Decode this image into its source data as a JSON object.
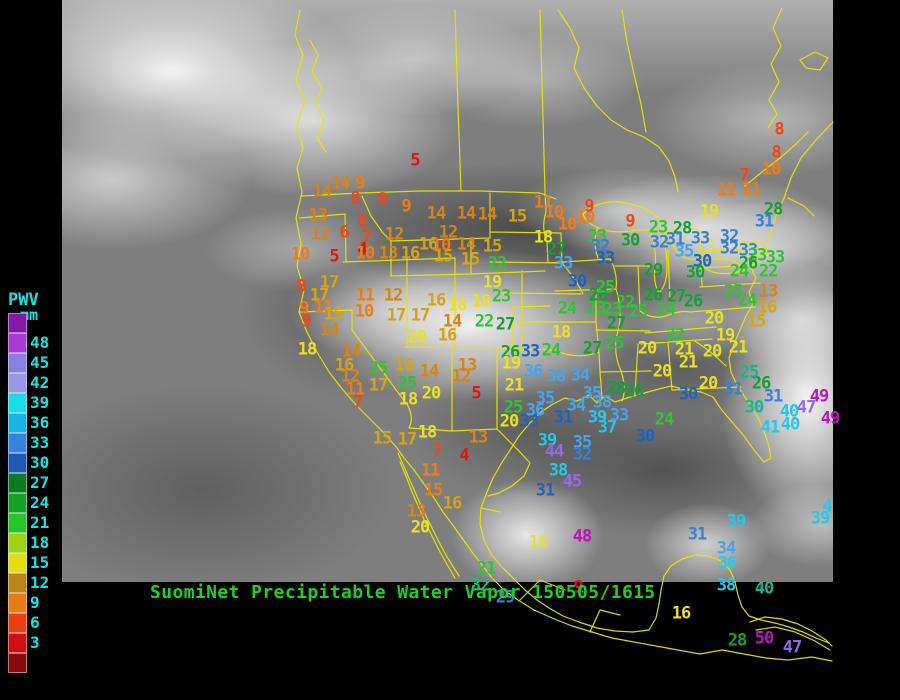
{
  "title": {
    "text": "SuomiNet Precipitable Water Vapor 150505/1615",
    "color": "#20d020"
  },
  "legend": {
    "title": "PWV",
    "units": "mm",
    "text_color": "#10e4e4",
    "swatches": [
      {
        "label": "",
        "color": "#8818a8"
      },
      {
        "label": "48",
        "color": "#a838d8"
      },
      {
        "label": "45",
        "color": "#8880e0"
      },
      {
        "label": "42",
        "color": "#9898e8"
      },
      {
        "label": "39",
        "color": "#18dce8"
      },
      {
        "label": "36",
        "color": "#18b4e8"
      },
      {
        "label": "33",
        "color": "#3484e0"
      },
      {
        "label": "30",
        "color": "#1c5cb4"
      },
      {
        "label": "27",
        "color": "#0c7c24"
      },
      {
        "label": "24",
        "color": "#14a424"
      },
      {
        "label": "21",
        "color": "#28c428"
      },
      {
        "label": "18",
        "color": "#9cd414"
      },
      {
        "label": "15",
        "color": "#e4dc14"
      },
      {
        "label": "12",
        "color": "#bc8414"
      },
      {
        "label": "9",
        "color": "#e87c14"
      },
      {
        "label": "6",
        "color": "#e84010"
      },
      {
        "label": "3",
        "color": "#d01010"
      },
      {
        "label": "",
        "color": "#8c0c0c"
      }
    ]
  },
  "map": {
    "outline_color": "#e8e400"
  },
  "palette": {
    "r": "#e41414",
    "o": "#f04814",
    "O": "#f07c14",
    "a": "#d88414",
    "g": "#d4a414",
    "y": "#e8e024",
    "G": "#30c434",
    "d": "#14a034",
    "t": "#14b890",
    "B": "#1c64c0",
    "b": "#3480dc",
    "l": "#44a4f0",
    "c": "#24c8ec",
    "p": "#9468ec",
    "m": "#bc14bc"
  },
  "stations": [
    [
      5,
      415,
      161,
      "r"
    ],
    [
      14,
      340,
      184,
      "a"
    ],
    [
      9,
      360,
      184,
      "O"
    ],
    [
      14,
      322,
      192,
      "a"
    ],
    [
      8,
      355,
      199,
      "o"
    ],
    [
      8,
      382,
      200,
      "o"
    ],
    [
      9,
      406,
      207,
      "O"
    ],
    [
      13,
      318,
      216,
      "a"
    ],
    [
      12,
      320,
      235,
      "a"
    ],
    [
      6,
      344,
      233,
      "o"
    ],
    [
      8,
      362,
      222,
      "o"
    ],
    [
      7,
      366,
      238,
      "o"
    ],
    [
      4,
      362,
      250,
      "r"
    ],
    [
      12,
      394,
      235,
      "a"
    ],
    [
      14,
      436,
      214,
      "a"
    ],
    [
      14,
      466,
      214,
      "a"
    ],
    [
      14,
      487,
      215,
      "a"
    ],
    [
      15,
      517,
      217,
      "g"
    ],
    [
      10,
      300,
      255,
      "O"
    ],
    [
      5,
      334,
      257,
      "r"
    ],
    [
      10,
      365,
      254,
      "O"
    ],
    [
      13,
      388,
      254,
      "a"
    ],
    [
      16,
      410,
      254,
      "g"
    ],
    [
      15,
      443,
      257,
      "g"
    ],
    [
      15,
      470,
      260,
      "g"
    ],
    [
      12,
      448,
      233,
      "a"
    ],
    [
      16,
      428,
      245,
      "g"
    ],
    [
      10,
      441,
      246,
      "O"
    ],
    [
      14,
      466,
      245,
      "a"
    ],
    [
      15,
      492,
      247,
      "g"
    ],
    [
      11,
      543,
      203,
      "O"
    ],
    [
      10,
      554,
      213,
      "O"
    ],
    [
      10,
      567,
      225,
      "O"
    ],
    [
      10,
      585,
      218,
      "O"
    ],
    [
      9,
      589,
      207,
      "o"
    ],
    [
      9,
      630,
      222,
      "o"
    ],
    [
      18,
      543,
      238,
      "y"
    ],
    [
      8,
      301,
      287,
      "o"
    ],
    [
      17,
      329,
      283,
      "g"
    ],
    [
      17,
      319,
      296,
      "g"
    ],
    [
      9,
      304,
      309,
      "O"
    ],
    [
      11,
      323,
      308,
      "O"
    ],
    [
      9,
      306,
      322,
      "o"
    ],
    [
      15,
      333,
      315,
      "g"
    ],
    [
      14,
      329,
      331,
      "a"
    ],
    [
      11,
      365,
      296,
      "O"
    ],
    [
      12,
      393,
      296,
      "a"
    ],
    [
      10,
      364,
      312,
      "O"
    ],
    [
      17,
      396,
      316,
      "g"
    ],
    [
      17,
      420,
      316,
      "g"
    ],
    [
      16,
      436,
      301,
      "g"
    ],
    [
      18,
      457,
      306,
      "y"
    ],
    [
      18,
      481,
      302,
      "y"
    ],
    [
      23,
      501,
      297,
      "G"
    ],
    [
      14,
      452,
      322,
      "a"
    ],
    [
      22,
      484,
      322,
      "G"
    ],
    [
      27,
      505,
      325,
      "d"
    ],
    [
      16,
      447,
      336,
      "g"
    ],
    [
      20,
      417,
      338,
      "y"
    ],
    [
      19,
      492,
      283,
      "y"
    ],
    [
      22,
      497,
      264,
      "G"
    ],
    [
      18,
      307,
      350,
      "y"
    ],
    [
      14,
      351,
      352,
      "a"
    ],
    [
      16,
      344,
      366,
      "g"
    ],
    [
      12,
      350,
      377,
      "a"
    ],
    [
      11,
      355,
      390,
      "O"
    ],
    [
      7,
      358,
      403,
      "o"
    ],
    [
      25,
      378,
      369,
      "G"
    ],
    [
      17,
      378,
      386,
      "g"
    ],
    [
      25,
      407,
      384,
      "G"
    ],
    [
      16,
      404,
      366,
      "g"
    ],
    [
      14,
      429,
      372,
      "a"
    ],
    [
      20,
      431,
      394,
      "y"
    ],
    [
      18,
      408,
      400,
      "y"
    ],
    [
      24,
      567,
      309,
      "G"
    ],
    [
      18,
      561,
      333,
      "y"
    ],
    [
      27,
      556,
      250,
      "d"
    ],
    [
      33,
      563,
      264,
      "l"
    ],
    [
      23,
      597,
      237,
      "G"
    ],
    [
      32,
      600,
      247,
      "b"
    ],
    [
      33,
      605,
      259,
      "B"
    ],
    [
      30,
      577,
      282,
      "B"
    ],
    [
      26,
      598,
      296,
      "d"
    ],
    [
      25,
      605,
      288,
      "G"
    ],
    [
      23,
      596,
      309,
      "G"
    ],
    [
      23,
      612,
      310,
      "G"
    ],
    [
      22,
      625,
      303,
      "G"
    ],
    [
      25,
      638,
      312,
      "G"
    ],
    [
      27,
      616,
      324,
      "d"
    ],
    [
      25,
      614,
      344,
      "G"
    ],
    [
      26,
      510,
      353,
      "d"
    ],
    [
      33,
      530,
      352,
      "B"
    ],
    [
      24,
      551,
      351,
      "G"
    ],
    [
      27,
      592,
      349,
      "d"
    ],
    [
      13,
      467,
      366,
      "a"
    ],
    [
      12,
      461,
      377,
      "a"
    ],
    [
      5,
      476,
      394,
      "r"
    ],
    [
      19,
      511,
      364,
      "y"
    ],
    [
      36,
      533,
      372,
      "l"
    ],
    [
      38,
      556,
      377,
      "l"
    ],
    [
      34,
      580,
      376,
      "l"
    ],
    [
      21,
      514,
      386,
      "y"
    ],
    [
      25,
      513,
      408,
      "G"
    ],
    [
      20,
      509,
      422,
      "y"
    ],
    [
      33,
      529,
      422,
      "B"
    ],
    [
      31,
      563,
      418,
      "B"
    ],
    [
      39,
      597,
      418,
      "c"
    ],
    [
      37,
      607,
      428,
      "c"
    ],
    [
      33,
      619,
      416,
      "l"
    ],
    [
      30,
      645,
      437,
      "B"
    ],
    [
      35,
      545,
      399,
      "l"
    ],
    [
      36,
      535,
      411,
      "l"
    ],
    [
      34,
      576,
      406,
      "l"
    ],
    [
      38,
      602,
      403,
      "l"
    ],
    [
      35,
      592,
      394,
      "l"
    ],
    [
      28,
      616,
      389,
      "d"
    ],
    [
      26,
      634,
      392,
      "d"
    ],
    [
      13,
      478,
      438,
      "a"
    ],
    [
      39,
      547,
      441,
      "c"
    ],
    [
      35,
      582,
      443,
      "l"
    ],
    [
      44,
      554,
      452,
      "p"
    ],
    [
      32,
      582,
      455,
      "b"
    ],
    [
      38,
      558,
      471,
      "c"
    ],
    [
      45,
      572,
      482,
      "p"
    ],
    [
      31,
      545,
      491,
      "B"
    ],
    [
      15,
      382,
      439,
      "g"
    ],
    [
      17,
      407,
      440,
      "g"
    ],
    [
      18,
      427,
      433,
      "y"
    ],
    [
      7,
      437,
      451,
      "o"
    ],
    [
      4,
      464,
      456,
      "r"
    ],
    [
      11,
      430,
      471,
      "O"
    ],
    [
      15,
      433,
      491,
      "O"
    ],
    [
      16,
      452,
      504,
      "g"
    ],
    [
      13,
      416,
      512,
      "a"
    ],
    [
      20,
      420,
      528,
      "y"
    ],
    [
      21,
      486,
      569,
      "G"
    ],
    [
      32,
      480,
      586,
      "t"
    ],
    [
      29,
      505,
      598,
      "b"
    ],
    [
      9,
      578,
      588,
      "r"
    ],
    [
      16,
      538,
      543,
      "y"
    ],
    [
      48,
      582,
      537,
      "m"
    ],
    [
      31,
      697,
      535,
      "b"
    ],
    [
      39,
      736,
      522,
      "c"
    ],
    [
      34,
      726,
      549,
      "l"
    ],
    [
      36,
      727,
      564,
      "c"
    ],
    [
      38,
      726,
      586,
      "c"
    ],
    [
      40,
      764,
      589,
      "t"
    ],
    [
      16,
      681,
      614,
      "y"
    ],
    [
      28,
      737,
      641,
      "d"
    ],
    [
      50,
      764,
      639,
      "m"
    ],
    [
      47,
      792,
      648,
      "p"
    ],
    [
      39,
      820,
      519,
      "c"
    ],
    [
      4,
      827,
      507,
      "c"
    ],
    [
      8,
      779,
      130,
      "o"
    ],
    [
      8,
      776,
      153,
      "o"
    ],
    [
      10,
      771,
      170,
      "O"
    ],
    [
      7,
      744,
      176,
      "o"
    ],
    [
      11,
      726,
      191,
      "O"
    ],
    [
      11,
      751,
      190,
      "O"
    ],
    [
      19,
      709,
      212,
      "y"
    ],
    [
      28,
      773,
      210,
      "d"
    ],
    [
      31,
      764,
      222,
      "b"
    ],
    [
      23,
      658,
      228,
      "G"
    ],
    [
      28,
      682,
      229,
      "d"
    ],
    [
      30,
      630,
      241,
      "d"
    ],
    [
      32,
      659,
      243,
      "b"
    ],
    [
      31,
      675,
      240,
      "b"
    ],
    [
      33,
      700,
      239,
      "b"
    ],
    [
      35,
      684,
      252,
      "l"
    ],
    [
      32,
      729,
      237,
      "b"
    ],
    [
      32,
      729,
      249,
      "b"
    ],
    [
      33,
      748,
      251,
      "b"
    ],
    [
      23,
      757,
      256,
      "G"
    ],
    [
      33,
      775,
      258,
      "G"
    ],
    [
      30,
      702,
      262,
      "B"
    ],
    [
      29,
      653,
      271,
      "d"
    ],
    [
      30,
      695,
      273,
      "d"
    ],
    [
      26,
      653,
      296,
      "d"
    ],
    [
      27,
      676,
      297,
      "d"
    ],
    [
      26,
      693,
      302,
      "d"
    ],
    [
      26,
      748,
      264,
      "d"
    ],
    [
      24,
      739,
      272,
      "G"
    ],
    [
      22,
      768,
      272,
      "G"
    ],
    [
      25,
      733,
      292,
      "G"
    ],
    [
      13,
      768,
      292,
      "a"
    ],
    [
      16,
      767,
      308,
      "g"
    ],
    [
      15,
      756,
      322,
      "g"
    ],
    [
      24,
      747,
      301,
      "G"
    ],
    [
      20,
      714,
      319,
      "y"
    ],
    [
      19,
      725,
      336,
      "y"
    ],
    [
      21,
      738,
      348,
      "y"
    ],
    [
      24,
      666,
      310,
      "G"
    ],
    [
      22,
      675,
      336,
      "G"
    ],
    [
      20,
      647,
      349,
      "y"
    ],
    [
      21,
      684,
      350,
      "y"
    ],
    [
      20,
      712,
      352,
      "y"
    ],
    [
      21,
      688,
      363,
      "y"
    ],
    [
      20,
      662,
      372,
      "y"
    ],
    [
      20,
      708,
      384,
      "y"
    ],
    [
      30,
      688,
      395,
      "B"
    ],
    [
      24,
      664,
      420,
      "G"
    ],
    [
      26,
      761,
      384,
      "d"
    ],
    [
      25,
      749,
      373,
      "t"
    ],
    [
      31,
      733,
      390,
      "b"
    ],
    [
      31,
      773,
      397,
      "b"
    ],
    [
      30,
      754,
      408,
      "t"
    ],
    [
      40,
      789,
      412,
      "c"
    ],
    [
      47,
      806,
      408,
      "p"
    ],
    [
      49,
      819,
      397,
      "m"
    ],
    [
      41,
      770,
      428,
      "c"
    ],
    [
      40,
      790,
      425,
      "c"
    ],
    [
      49,
      830,
      419,
      "m"
    ]
  ]
}
